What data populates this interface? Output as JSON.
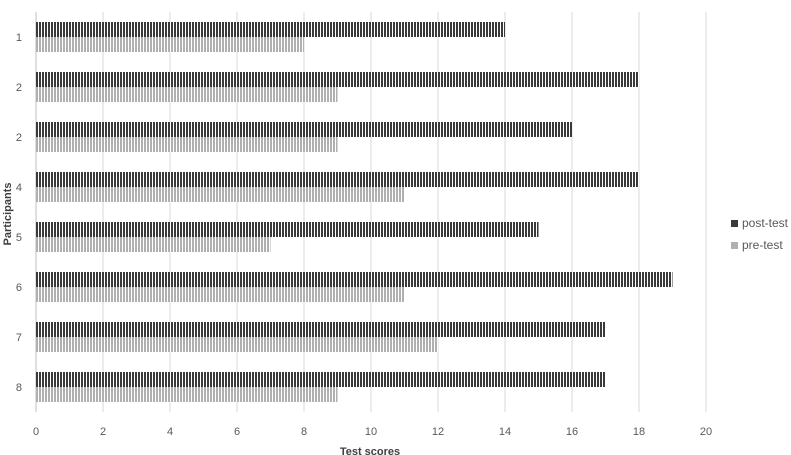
{
  "chart_data": {
    "type": "bar",
    "orientation": "horizontal",
    "title": "",
    "xlabel": "Test scores",
    "ylabel": "Participants",
    "categories": [
      "1",
      "2",
      "2",
      "4",
      "5",
      "6",
      "7",
      "8"
    ],
    "series": [
      {
        "name": "post-test",
        "values": [
          14,
          18,
          16,
          18,
          15,
          19,
          17,
          17
        ],
        "color": "#3a3a3a"
      },
      {
        "name": "pre-test",
        "values": [
          8,
          9,
          9,
          11,
          7,
          11,
          12,
          9
        ],
        "color": "#b0b0b0"
      }
    ],
    "xlim": [
      0,
      20
    ],
    "xticks": [
      0,
      2,
      4,
      6,
      8,
      10,
      12,
      14,
      16,
      18,
      20
    ],
    "grid": "vertical",
    "legend_position": "right"
  }
}
